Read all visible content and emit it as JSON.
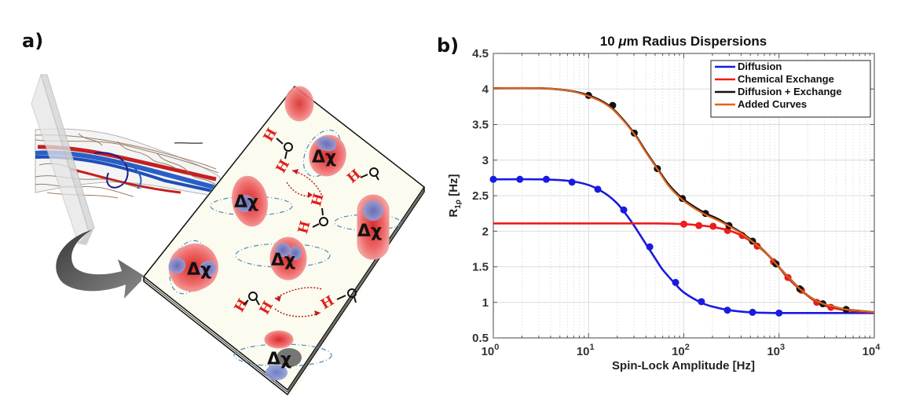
{
  "panels": {
    "a": {
      "label": "a)",
      "description": "Tissue vessel section with slice plane; magnified plane showing red blood cells with susceptibility differences and water proton exchange",
      "cell_label": "Δχ",
      "water_h": "H",
      "water_o": "O",
      "icons": [
        "vessel-bundle-icon",
        "slice-plane-icon",
        "curved-arrow-icon",
        "red-blood-cell-icon",
        "water-molecule-icon",
        "exchange-arrow-icon",
        "field-line-icon"
      ]
    },
    "b": {
      "label": "b)"
    }
  },
  "chart_data": {
    "type": "line",
    "title": "10 μm Radius Dispersions",
    "title_parts": {
      "prefix": "10 ",
      "mu": "μ",
      "suffix": "m Radius Dispersions"
    },
    "xlabel": "Spin-Lock Amplitude [Hz]",
    "ylabel": "R",
    "ylabel_sub": "1ρ",
    "ylabel_unit": " [Hz]",
    "xscale": "log",
    "xlim": [
      1,
      10000
    ],
    "ylim": [
      0.5,
      4.5
    ],
    "xticks": [
      {
        "base": "10",
        "exp": "0",
        "value": 1
      },
      {
        "base": "10",
        "exp": "1",
        "value": 10
      },
      {
        "base": "10",
        "exp": "2",
        "value": 100
      },
      {
        "base": "10",
        "exp": "3",
        "value": 1000
      },
      {
        "base": "10",
        "exp": "4",
        "value": 10000
      }
    ],
    "yticks": [
      "0.5",
      "1",
      "1.5",
      "2",
      "2.5",
      "3",
      "3.5",
      "4",
      "4.5"
    ],
    "grid": true,
    "legend_position": "top-right",
    "series": [
      {
        "name": "Diffusion",
        "color": "#1a1adf",
        "curve": {
          "x": [
            1,
            3,
            6,
            10,
            15,
            20,
            25,
            30,
            40,
            50,
            60,
            80,
            100,
            150,
            200,
            300,
            500,
            1000,
            3000,
            10000
          ],
          "y": [
            2.73,
            2.73,
            2.71,
            2.65,
            2.53,
            2.39,
            2.23,
            2.08,
            1.82,
            1.62,
            1.46,
            1.27,
            1.14,
            1.0,
            0.94,
            0.89,
            0.86,
            0.85,
            0.85,
            0.85
          ]
        },
        "markers": {
          "x": [
            1.0,
            1.9,
            3.6,
            6.7,
            12.5,
            23.4,
            43.9,
            82,
            153,
            287,
            527,
            1000
          ],
          "y": [
            2.73,
            2.73,
            2.73,
            2.69,
            2.59,
            2.3,
            1.78,
            1.28,
            1.01,
            0.89,
            0.86,
            0.85
          ]
        }
      },
      {
        "name": "Chemical Exchange",
        "color": "#ee1c1c",
        "curve": {
          "x": [
            1,
            10,
            50,
            100,
            150,
            200,
            300,
            400,
            600,
            900,
            1200,
            1700,
            2500,
            3500,
            5000,
            7000,
            10000
          ],
          "y": [
            2.11,
            2.11,
            2.11,
            2.1,
            2.08,
            2.06,
            2.01,
            1.94,
            1.79,
            1.57,
            1.36,
            1.17,
            1.0,
            0.93,
            0.89,
            0.87,
            0.86
          ]
        },
        "markers": {
          "x": [
            100,
            144,
            203,
            288,
            412,
            590,
            875,
            1240,
            1720,
            2490,
            3500
          ],
          "y": [
            2.1,
            2.08,
            2.07,
            2.01,
            1.94,
            1.79,
            1.57,
            1.35,
            1.17,
            1.0,
            0.93
          ]
        }
      },
      {
        "name": "Diffusion + Exchange",
        "color": "#111111",
        "curve": {
          "x": [
            1,
            3,
            6,
            10,
            15,
            20,
            30,
            40,
            53,
            70,
            97,
            130,
            170,
            230,
            300,
            400,
            530,
            700,
            930,
            1200,
            1650,
            2200,
            2900,
            4000,
            5000,
            7000,
            10000
          ],
          "y": [
            4.01,
            4.01,
            3.98,
            3.91,
            3.8,
            3.66,
            3.38,
            3.12,
            2.88,
            2.65,
            2.46,
            2.34,
            2.25,
            2.17,
            2.08,
            1.98,
            1.86,
            1.72,
            1.54,
            1.38,
            1.19,
            1.06,
            0.98,
            0.93,
            0.9,
            0.88,
            0.86
          ]
        },
        "markers": {
          "x": [
            10,
            17.9,
            30.2,
            52.8,
            96.7,
            169,
            298,
            527,
            930,
            1650,
            2880,
            5060
          ],
          "y": [
            3.91,
            3.77,
            3.38,
            2.88,
            2.46,
            2.25,
            2.08,
            1.86,
            1.54,
            1.19,
            0.98,
            0.9
          ]
        }
      },
      {
        "name": "Added Curves",
        "color": "#e0641e",
        "curve": {
          "x": [
            1,
            3,
            6,
            10,
            15,
            20,
            30,
            40,
            53,
            70,
            97,
            130,
            170,
            230,
            300,
            400,
            530,
            700,
            930,
            1200,
            1650,
            2200,
            2900,
            4000,
            5000,
            7000,
            10000
          ],
          "y": [
            4.01,
            4.01,
            3.98,
            3.9,
            3.79,
            3.65,
            3.37,
            3.11,
            2.87,
            2.63,
            2.44,
            2.32,
            2.23,
            2.15,
            2.07,
            1.97,
            1.85,
            1.72,
            1.54,
            1.38,
            1.19,
            1.06,
            0.98,
            0.93,
            0.9,
            0.88,
            0.86
          ]
        },
        "markers": null
      }
    ]
  }
}
